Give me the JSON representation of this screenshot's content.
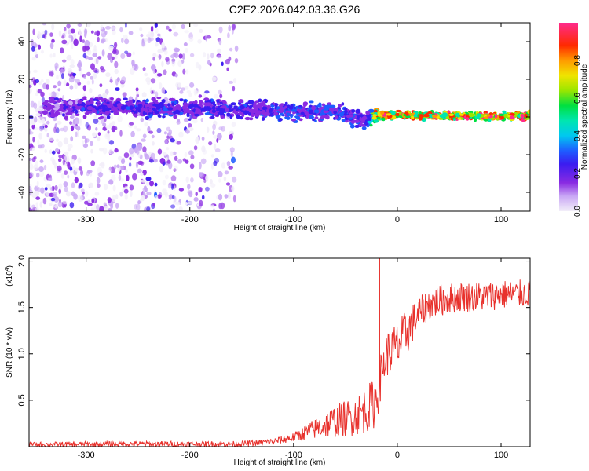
{
  "title": "C2E2.2026.042.03.36.G26",
  "chart_data": [
    {
      "type": "heatmap",
      "xlabel": "Height of straight line (km)",
      "ylabel": "Frequency (Hz)",
      "xlim": [
        -355,
        128
      ],
      "ylim": [
        -50,
        50
      ],
      "xticks": [
        -300,
        -200,
        -100,
        0,
        100
      ],
      "yticks": [
        -40,
        -20,
        0,
        20,
        40
      ],
      "colorbar": {
        "label": "Normalized spectral amplitude",
        "range": [
          0,
          1
        ],
        "ticks": [
          "0.0",
          "0.2",
          "0.4",
          "0.6",
          "0.8"
        ],
        "tick_values": [
          0.0,
          0.2,
          0.4,
          0.6,
          0.8
        ]
      },
      "description_of_signal": "broadband noise below -150 km, carrier band near 0 Hz strengthening toward positive heights",
      "band_profile": {
        "x": [
          -330,
          -300,
          -250,
          -200,
          -150,
          -100,
          -60,
          -30,
          -20,
          0,
          50,
          128
        ],
        "center_hz": [
          5,
          5,
          5,
          4,
          4,
          3,
          3,
          -2,
          1,
          1,
          0.5,
          0.5
        ],
        "peak_amplitude": [
          0.25,
          0.3,
          0.3,
          0.32,
          0.3,
          0.35,
          0.35,
          0.3,
          0.9,
          0.95,
          0.98,
          0.98
        ]
      }
    },
    {
      "type": "line",
      "xlabel": "Height of straight line (km)",
      "ylabel": "SNR (10 * v/v)",
      "scale_label": "(x10",
      "scale_exp": "4",
      "scale_close": ")",
      "xlim": [
        -355,
        128
      ],
      "ylim": [
        0,
        2.03
      ],
      "xticks": [
        -300,
        -200,
        -100,
        0,
        100
      ],
      "yticks": [
        0.5,
        1.0,
        1.5,
        2.0
      ],
      "ytick_labels": [
        "0.5",
        "1.0",
        "1.5",
        "2.0"
      ],
      "color": "#e8312c",
      "envelope": {
        "x": [
          -355,
          -250,
          -200,
          -150,
          -120,
          -100,
          -80,
          -60,
          -40,
          -30,
          -22,
          -18,
          -15,
          -10,
          0,
          10,
          20,
          30,
          40,
          60,
          80,
          100,
          128
        ],
        "low": [
          0.0,
          0.0,
          0.0,
          0.0,
          0.02,
          0.05,
          0.08,
          0.1,
          0.12,
          0.15,
          0.2,
          0.35,
          0.6,
          0.75,
          0.8,
          1.0,
          1.25,
          1.35,
          1.4,
          1.45,
          1.45,
          1.48,
          1.5
        ],
        "high": [
          0.05,
          0.06,
          0.06,
          0.06,
          0.09,
          0.15,
          0.3,
          0.45,
          0.55,
          0.65,
          0.75,
          0.9,
          1.05,
          1.25,
          1.35,
          1.5,
          1.6,
          1.7,
          1.75,
          1.78,
          1.78,
          1.8,
          1.8
        ]
      },
      "spikes": [
        {
          "x": -17,
          "y": 2.03
        }
      ]
    }
  ]
}
